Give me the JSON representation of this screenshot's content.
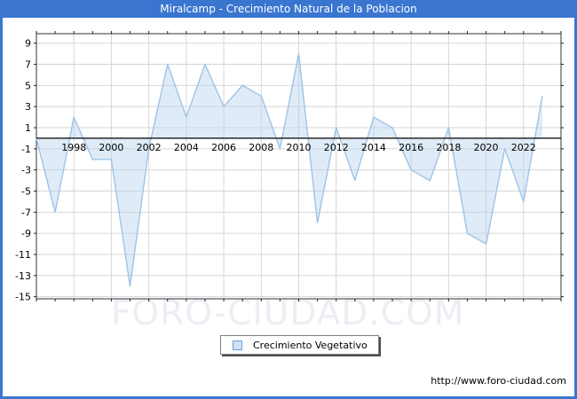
{
  "window": {
    "title": "Miralcamp - Crecimiento Natural de la Poblacion",
    "title_bar_color": "#3a76d0"
  },
  "chart_data": {
    "type": "area",
    "title": "Miralcamp - Crecimiento Natural de la Poblacion",
    "series_name": "Crecimiento Vegetativo",
    "x": [
      1996,
      1997,
      1998,
      1999,
      2000,
      2001,
      2002,
      2003,
      2004,
      2005,
      2006,
      2007,
      2008,
      2009,
      2010,
      2011,
      2012,
      2013,
      2014,
      2015,
      2016,
      2017,
      2018,
      2019,
      2020,
      2021,
      2022,
      2023
    ],
    "values": [
      0,
      -7,
      2,
      -2,
      -2,
      -14,
      -1,
      7,
      2,
      7,
      3,
      5,
      4,
      -1,
      8,
      -8,
      1,
      -4,
      2,
      1,
      -3,
      -4,
      1,
      -9,
      -10,
      -1,
      -6,
      4
    ],
    "x_axis": {
      "range": [
        1996,
        2024
      ],
      "ticks": [
        1998,
        2000,
        2002,
        2004,
        2006,
        2008,
        2010,
        2012,
        2014,
        2016,
        2018,
        2020,
        2022
      ],
      "minor_tick_step_years": 1
    },
    "y_axis": {
      "range": [
        -15.2,
        9.9
      ],
      "ticks": [
        9,
        7,
        5,
        3,
        1,
        -1,
        -3,
        -5,
        -7,
        -9,
        -11,
        -13,
        -15
      ]
    },
    "grid": true,
    "baseline": 0,
    "legend_position": "bottom-center",
    "colors": {
      "line": "#9fc3e7",
      "fill": "#b8d4f0",
      "grid": "#d6d6d6",
      "axis_border": "#333333",
      "zero_line": "#000000",
      "tick": "#222222",
      "label": "#000000"
    }
  },
  "legend": {
    "label": "Crecimiento Vegetativo",
    "swatch_fill": "#cfe2f6",
    "swatch_border": "#6f9fd8"
  },
  "watermark": {
    "text": "FORO-CIUDAD.COM"
  },
  "footer": {
    "url": "http://www.foro-ciudad.com"
  }
}
